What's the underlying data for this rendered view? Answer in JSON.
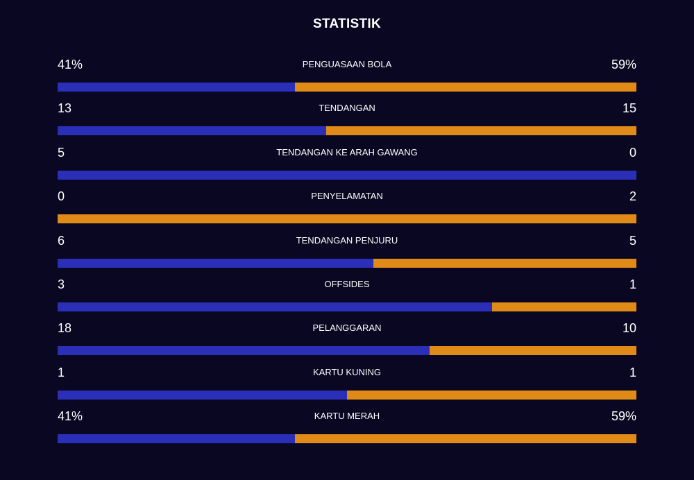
{
  "title": "STATISTIK",
  "colors": {
    "home": "#2b2fb8",
    "away": "#e08a17",
    "background": "#090721"
  },
  "stats": [
    {
      "label": "PENGUASAAN BOLA",
      "home": "41%",
      "away": "59%",
      "home_share": 0.41
    },
    {
      "label": "TENDANGAN",
      "home": "13",
      "away": "15",
      "home_share": 0.4643
    },
    {
      "label": "TENDANGAN KE ARAH GAWANG",
      "home": "5",
      "away": "0",
      "home_share": 1.0
    },
    {
      "label": "PENYELAMATAN",
      "home": "0",
      "away": "2",
      "home_share": 0.0
    },
    {
      "label": "TENDANGAN PENJURU",
      "home": "6",
      "away": "5",
      "home_share": 0.5455
    },
    {
      "label": "OFFSIDES",
      "home": "3",
      "away": "1",
      "home_share": 0.75
    },
    {
      "label": "PELANGGARAN",
      "home": "18",
      "away": "10",
      "home_share": 0.6429
    },
    {
      "label": "KARTU KUNING",
      "home": "1",
      "away": "1",
      "home_share": 0.5
    },
    {
      "label": "KARTU MERAH",
      "home": "41%",
      "away": "59%",
      "home_share": 0.41
    }
  ]
}
